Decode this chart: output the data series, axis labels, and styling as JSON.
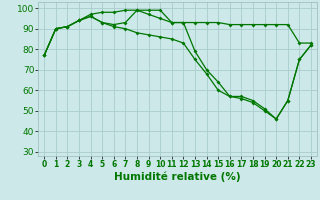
{
  "xlabel": "Humidité relative (%)",
  "bg_color": "#cce8e8",
  "grid_color": "#aacccc",
  "line_color": "#007700",
  "ylim": [
    28,
    103
  ],
  "xlim": [
    -0.5,
    23.5
  ],
  "yticks": [
    30,
    40,
    50,
    60,
    70,
    80,
    90,
    100
  ],
  "xticks": [
    0,
    1,
    2,
    3,
    4,
    5,
    6,
    7,
    8,
    9,
    10,
    11,
    12,
    13,
    14,
    15,
    16,
    17,
    18,
    19,
    20,
    21,
    22,
    23
  ],
  "series1": [
    77,
    90,
    91,
    94,
    96,
    93,
    92,
    93,
    99,
    99,
    99,
    93,
    93,
    93,
    93,
    93,
    92,
    92,
    92,
    92,
    92,
    92,
    83,
    83
  ],
  "series2": [
    77,
    90,
    91,
    94,
    97,
    98,
    98,
    99,
    99,
    97,
    95,
    93,
    93,
    79,
    70,
    64,
    57,
    57,
    55,
    51,
    46,
    55,
    75,
    82
  ],
  "series3": [
    77,
    90,
    91,
    94,
    96,
    93,
    91,
    90,
    88,
    87,
    86,
    85,
    83,
    75,
    68,
    60,
    57,
    56,
    54,
    50,
    46,
    55,
    75,
    82
  ],
  "ytick_fontsize": 6.5,
  "xtick_fontsize": 5.5,
  "xlabel_fontsize": 7.5
}
